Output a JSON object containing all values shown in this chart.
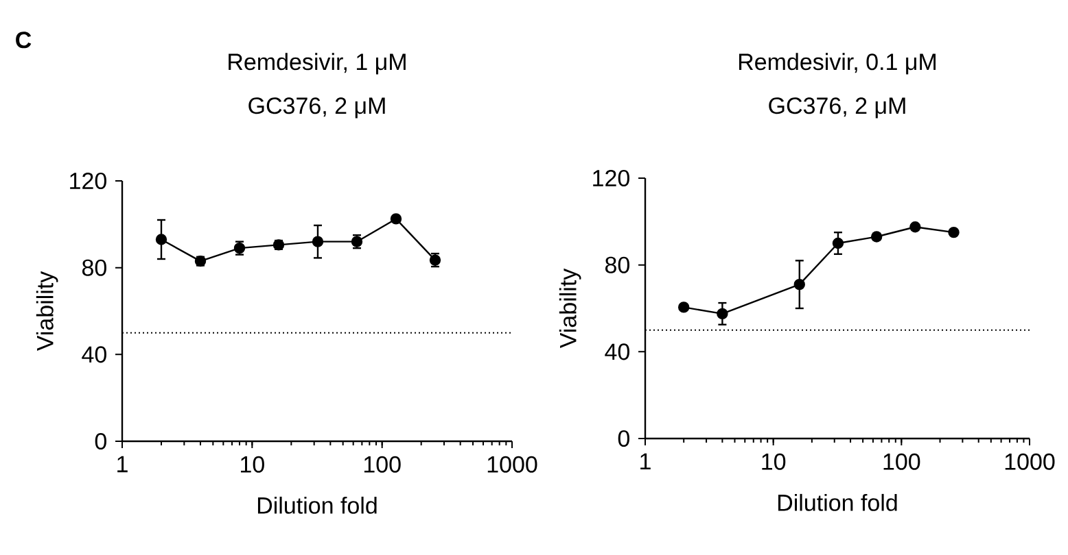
{
  "chart_data": [
    {
      "type": "line",
      "title": "Remdesivir, 1 μM",
      "subtitle": "GC376, 2 μM",
      "xlabel": "Dilution fold",
      "ylabel": "Viability",
      "annotations": [
        "C"
      ],
      "x": [
        2,
        4,
        8,
        16,
        32,
        64,
        128,
        256
      ],
      "series": [
        {
          "color": "#000000",
          "values": [
            93,
            83,
            89,
            90.5,
            92,
            92,
            102.5,
            83.5
          ],
          "errors": [
            9,
            2,
            3,
            2,
            7.5,
            3,
            1,
            3
          ]
        }
      ],
      "xlim": [
        1,
        1000
      ],
      "ylim": [
        0,
        120
      ],
      "xticks": [
        1,
        10,
        100,
        1000
      ],
      "yticks": [
        0,
        40,
        80,
        120
      ],
      "log": "x",
      "marker": "circle",
      "line_style": "solid",
      "ref_lines": [
        {
          "axis": "y",
          "value": 50,
          "line_style": "dotted",
          "color": "#000000"
        }
      ]
    },
    {
      "type": "line",
      "title": "Remdesivir, 0.1 μM",
      "subtitle": "GC376, 2 μM",
      "xlabel": "Dilution fold",
      "ylabel": "Viability",
      "x": [
        2,
        4,
        16,
        32,
        64,
        128,
        256
      ],
      "series": [
        {
          "color": "#000000",
          "values": [
            60.5,
            57.5,
            71,
            90,
            93,
            97.5,
            95
          ],
          "errors": [
            1,
            5,
            11,
            5,
            1.5,
            1,
            1
          ]
        }
      ],
      "xlim": [
        1,
        1000
      ],
      "ylim": [
        0,
        120
      ],
      "xticks": [
        1,
        10,
        100,
        1000
      ],
      "yticks": [
        0,
        40,
        80,
        120
      ],
      "log": "x",
      "marker": "circle",
      "line_style": "solid",
      "ref_lines": [
        {
          "axis": "y",
          "value": 50,
          "line_style": "dotted",
          "color": "#000000"
        }
      ]
    }
  ]
}
